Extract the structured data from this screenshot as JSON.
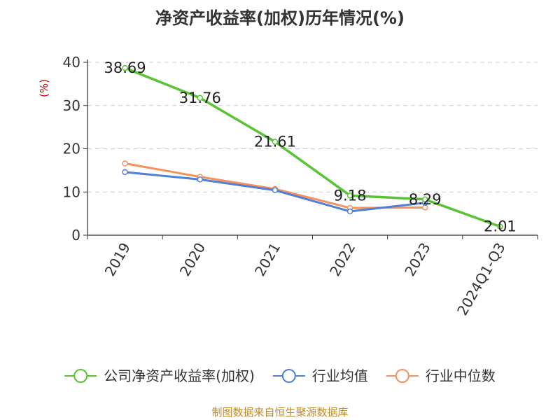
{
  "chart_data": {
    "type": "line",
    "title": "净资产收益率(加权)历年情况(%)",
    "ylabel": "(%)",
    "categories": [
      "2019",
      "2020",
      "2021",
      "2022",
      "2023",
      "2024Q1-Q3"
    ],
    "ylim": [
      0,
      40
    ],
    "yticks": [
      "0",
      "10",
      "20",
      "30",
      "40"
    ],
    "grid": true,
    "legend_position": "bottom",
    "series": [
      {
        "name": "公司净资产收益率(加权)",
        "color": "#58c434",
        "values": [
          38.69,
          31.76,
          21.61,
          9.18,
          8.29,
          2.01
        ],
        "labels": [
          "38.69",
          "31.76",
          "21.61",
          "9.18",
          "8.29",
          "2.01"
        ]
      },
      {
        "name": "行业均值",
        "color": "#4f7fd8",
        "values": [
          14.6,
          12.9,
          10.4,
          5.5,
          7.5,
          null
        ]
      },
      {
        "name": "行业中位数",
        "color": "#f4915c",
        "values": [
          16.6,
          13.5,
          10.7,
          6.3,
          6.4,
          null
        ]
      }
    ]
  },
  "source": "制图数据来自恒生聚源数据库"
}
